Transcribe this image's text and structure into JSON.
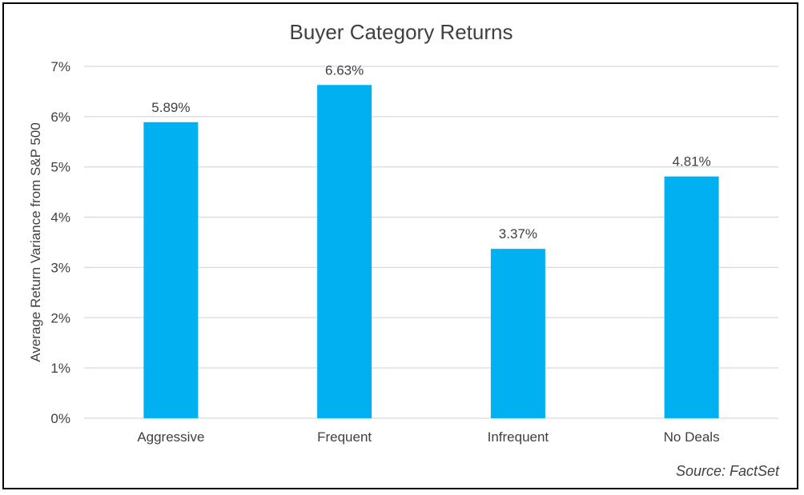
{
  "chart_data": {
    "type": "bar",
    "title": "Buyer Category Returns",
    "xlabel": "",
    "ylabel": "Average Return Variance from S&P 500",
    "categories": [
      "Aggressive",
      "Frequent",
      "Infrequent",
      "No Deals"
    ],
    "values": [
      5.89,
      6.63,
      3.37,
      4.81
    ],
    "value_labels": [
      "5.89%",
      "6.63%",
      "3.37%",
      "4.81%"
    ],
    "ylim": [
      0,
      7
    ],
    "yticks": [
      "0%",
      "1%",
      "2%",
      "3%",
      "4%",
      "5%",
      "6%",
      "7%"
    ],
    "grid": true,
    "legend": "none",
    "bar_color": "#00B0F0",
    "gridline_color": "#D9D9D9",
    "source_note": "Source: FactSet"
  }
}
